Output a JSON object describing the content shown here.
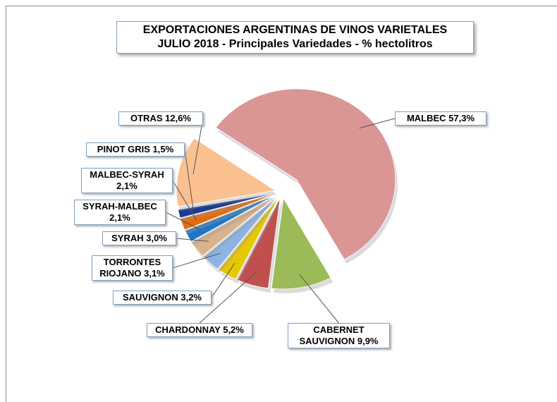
{
  "chart_data": {
    "type": "pie",
    "title": "EXPORTACIONES ARGENTINAS DE VINOS VARIETALES",
    "subtitle": "JULIO 2018 - Principales Variedades - % hectolitros",
    "categories": [
      "MALBEC",
      "CABERNET SAUVIGNON",
      "CHARDONNAY",
      "SAUVIGNON",
      "TORRONTES RIOJANO",
      "SYRAH",
      "SYRAH-MALBEC",
      "MALBEC-SYRAH",
      "PINOT GRIS",
      "OTRAS"
    ],
    "values": [
      57.3,
      9.9,
      5.2,
      3.2,
      3.1,
      3.0,
      2.1,
      2.1,
      1.5,
      12.6
    ],
    "value_labels": [
      "57,3%",
      "9,9%",
      "5,2%",
      "3,2%",
      "3,1%",
      "3,0%",
      "2,1%",
      "2,1%",
      "1,5%",
      "12,6%"
    ],
    "colors": [
      "#d99694",
      "#9bbb59",
      "#c0504d",
      "#e6c700",
      "#8db3e2",
      "#d9b38c",
      "#1f77c4",
      "#e46c0a",
      "#1f3a93",
      "#fac090"
    ]
  }
}
